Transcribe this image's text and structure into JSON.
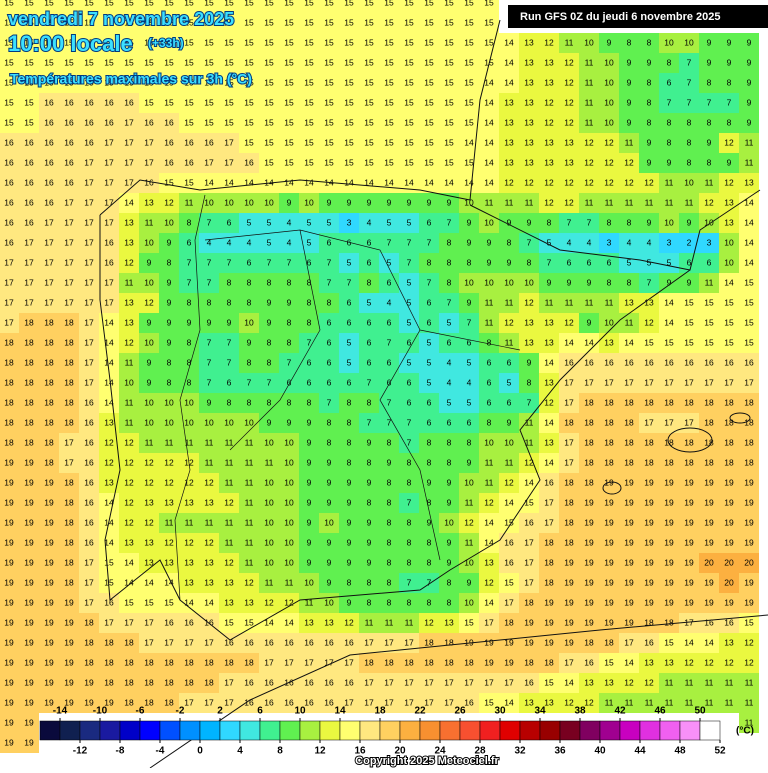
{
  "header": {
    "date": "vendredi 7 novembre 2025",
    "time": "10:00 locale",
    "lead": "(+33h)",
    "subtitle": "Températures maximales sur 3h (°C)",
    "run": "Run GFS 0Z du jeudi 6 novembre 2025"
  },
  "footer": {
    "copyright": "Copyright 2025 Meteociel.fr"
  },
  "grid": {
    "rows": [
      [
        15,
        15,
        15,
        15,
        15,
        15,
        15,
        15,
        15,
        15,
        15,
        15,
        15,
        15,
        15,
        15,
        15,
        15,
        15,
        15,
        15,
        15,
        15,
        15,
        15,
        null,
        null,
        null,
        null,
        null,
        null,
        null,
        null,
        null,
        null,
        null,
        null,
        null
      ],
      [
        15,
        15,
        15,
        15,
        15,
        15,
        15,
        15,
        15,
        15,
        15,
        15,
        15,
        15,
        15,
        15,
        15,
        15,
        15,
        15,
        15,
        15,
        15,
        15,
        15,
        null,
        null,
        null,
        null,
        null,
        null,
        null,
        null,
        null,
        null,
        null,
        null,
        null
      ],
      [
        15,
        15,
        15,
        15,
        15,
        15,
        15,
        15,
        15,
        15,
        15,
        15,
        15,
        15,
        15,
        15,
        15,
        15,
        15,
        15,
        15,
        15,
        15,
        15,
        15,
        14,
        13,
        12,
        11,
        10,
        9,
        8,
        8,
        10,
        10,
        9,
        9,
        9
      ],
      [
        15,
        15,
        15,
        15,
        15,
        15,
        15,
        15,
        15,
        15,
        15,
        15,
        15,
        15,
        15,
        15,
        15,
        15,
        15,
        15,
        15,
        15,
        15,
        15,
        15,
        14,
        13,
        13,
        12,
        11,
        10,
        9,
        9,
        8,
        7,
        9,
        9,
        9
      ],
      [
        15,
        15,
        15,
        15,
        15,
        15,
        15,
        15,
        15,
        15,
        15,
        15,
        15,
        15,
        15,
        15,
        15,
        15,
        15,
        15,
        15,
        15,
        15,
        15,
        14,
        14,
        13,
        13,
        12,
        11,
        10,
        9,
        8,
        6,
        7,
        8,
        8,
        9
      ],
      [
        15,
        15,
        16,
        16,
        16,
        16,
        16,
        15,
        15,
        15,
        15,
        15,
        15,
        15,
        15,
        15,
        15,
        15,
        15,
        15,
        15,
        15,
        15,
        15,
        14,
        13,
        13,
        12,
        12,
        11,
        10,
        9,
        8,
        7,
        7,
        7,
        7,
        9
      ],
      [
        15,
        15,
        16,
        16,
        16,
        16,
        17,
        16,
        16,
        15,
        15,
        15,
        15,
        15,
        15,
        15,
        15,
        15,
        15,
        15,
        15,
        15,
        15,
        15,
        14,
        13,
        13,
        12,
        12,
        11,
        10,
        9,
        8,
        8,
        8,
        8,
        8,
        9
      ],
      [
        16,
        16,
        16,
        16,
        16,
        17,
        17,
        17,
        16,
        16,
        16,
        17,
        15,
        15,
        15,
        15,
        15,
        15,
        15,
        15,
        15,
        15,
        15,
        14,
        14,
        13,
        13,
        13,
        13,
        12,
        12,
        11,
        9,
        8,
        8,
        9,
        12,
        11
      ],
      [
        16,
        16,
        16,
        16,
        17,
        17,
        17,
        17,
        16,
        16,
        17,
        17,
        16,
        15,
        15,
        15,
        15,
        15,
        15,
        15,
        15,
        15,
        15,
        15,
        14,
        13,
        13,
        13,
        13,
        12,
        12,
        12,
        9,
        9,
        8,
        8,
        9,
        11
      ],
      [
        16,
        16,
        16,
        16,
        17,
        17,
        17,
        16,
        15,
        15,
        14,
        14,
        14,
        14,
        14,
        14,
        14,
        14,
        14,
        14,
        14,
        14,
        14,
        14,
        14,
        12,
        12,
        12,
        12,
        12,
        12,
        12,
        12,
        11,
        10,
        11,
        12,
        13
      ],
      [
        16,
        16,
        16,
        17,
        17,
        17,
        14,
        13,
        12,
        11,
        10,
        10,
        10,
        10,
        9,
        10,
        9,
        9,
        9,
        9,
        9,
        9,
        9,
        10,
        11,
        11,
        11,
        12,
        12,
        11,
        11,
        11,
        11,
        11,
        11,
        12,
        13,
        14
      ],
      [
        16,
        16,
        17,
        17,
        17,
        17,
        13,
        11,
        10,
        8,
        7,
        6,
        5,
        5,
        4,
        5,
        5,
        3,
        4,
        5,
        5,
        6,
        7,
        9,
        10,
        9,
        9,
        8,
        7,
        7,
        8,
        8,
        9,
        10,
        9,
        10,
        13,
        14
      ],
      [
        16,
        17,
        17,
        17,
        17,
        16,
        13,
        10,
        9,
        6,
        4,
        4,
        4,
        5,
        4,
        5,
        6,
        6,
        6,
        7,
        7,
        7,
        8,
        9,
        9,
        8,
        7,
        5,
        4,
        4,
        3,
        4,
        4,
        3,
        2,
        3,
        10,
        14
      ],
      [
        17,
        17,
        17,
        17,
        17,
        16,
        12,
        9,
        8,
        7,
        7,
        7,
        6,
        7,
        7,
        6,
        7,
        5,
        6,
        5,
        7,
        8,
        8,
        8,
        9,
        9,
        8,
        7,
        6,
        6,
        6,
        5,
        5,
        5,
        6,
        6,
        10,
        14
      ],
      [
        17,
        17,
        17,
        17,
        17,
        17,
        11,
        10,
        9,
        7,
        7,
        8,
        8,
        8,
        8,
        8,
        7,
        7,
        8,
        6,
        5,
        7,
        8,
        10,
        10,
        10,
        10,
        9,
        9,
        9,
        8,
        8,
        7,
        9,
        9,
        11,
        14,
        15
      ],
      [
        17,
        17,
        17,
        17,
        17,
        17,
        13,
        12,
        9,
        8,
        8,
        8,
        8,
        9,
        9,
        8,
        8,
        6,
        5,
        4,
        5,
        6,
        7,
        9,
        11,
        11,
        12,
        11,
        11,
        11,
        11,
        13,
        13,
        14,
        15,
        15,
        15,
        15
      ],
      [
        17,
        18,
        18,
        18,
        17,
        14,
        13,
        9,
        9,
        9,
        9,
        9,
        10,
        9,
        8,
        8,
        6,
        6,
        6,
        6,
        5,
        6,
        5,
        7,
        11,
        12,
        13,
        13,
        12,
        9,
        10,
        11,
        12,
        14,
        15,
        15,
        15,
        15
      ],
      [
        18,
        18,
        18,
        18,
        17,
        14,
        12,
        10,
        9,
        8,
        7,
        7,
        9,
        8,
        8,
        7,
        6,
        5,
        6,
        7,
        6,
        5,
        6,
        6,
        8,
        11,
        13,
        13,
        14,
        14,
        13,
        14,
        15,
        15,
        15,
        15,
        15,
        15
      ],
      [
        18,
        18,
        18,
        18,
        17,
        14,
        11,
        9,
        8,
        8,
        7,
        7,
        8,
        8,
        7,
        6,
        6,
        5,
        6,
        6,
        5,
        5,
        4,
        5,
        6,
        6,
        9,
        14,
        16,
        16,
        16,
        16,
        16,
        16,
        16,
        16,
        16,
        16
      ],
      [
        18,
        18,
        18,
        18,
        17,
        14,
        10,
        9,
        8,
        8,
        7,
        6,
        7,
        7,
        6,
        6,
        6,
        6,
        7,
        6,
        6,
        5,
        4,
        4,
        6,
        5,
        8,
        13,
        17,
        17,
        17,
        17,
        17,
        17,
        17,
        17,
        17,
        17
      ],
      [
        18,
        18,
        18,
        18,
        16,
        14,
        11,
        10,
        10,
        10,
        9,
        8,
        8,
        8,
        8,
        8,
        7,
        8,
        8,
        7,
        6,
        6,
        5,
        5,
        6,
        6,
        7,
        12,
        17,
        18,
        18,
        18,
        18,
        18,
        18,
        18,
        18,
        18
      ],
      [
        18,
        18,
        18,
        18,
        16,
        13,
        11,
        10,
        10,
        10,
        10,
        10,
        10,
        9,
        9,
        9,
        8,
        8,
        7,
        7,
        7,
        6,
        6,
        6,
        8,
        9,
        11,
        14,
        18,
        18,
        18,
        18,
        17,
        17,
        17,
        18,
        18,
        18
      ],
      [
        18,
        18,
        18,
        17,
        16,
        12,
        12,
        11,
        11,
        11,
        11,
        11,
        11,
        10,
        10,
        9,
        8,
        8,
        9,
        8,
        7,
        8,
        8,
        8,
        10,
        10,
        11,
        13,
        17,
        18,
        18,
        18,
        18,
        18,
        18,
        18,
        18,
        18
      ],
      [
        19,
        19,
        18,
        17,
        16,
        12,
        12,
        12,
        12,
        12,
        11,
        11,
        11,
        11,
        10,
        9,
        9,
        8,
        8,
        9,
        8,
        8,
        8,
        9,
        11,
        11,
        12,
        14,
        17,
        18,
        18,
        18,
        18,
        18,
        18,
        18,
        18,
        18
      ],
      [
        19,
        19,
        19,
        18,
        16,
        13,
        12,
        12,
        12,
        12,
        12,
        11,
        11,
        10,
        10,
        9,
        9,
        9,
        9,
        8,
        8,
        9,
        9,
        10,
        11,
        12,
        14,
        16,
        18,
        18,
        19,
        19,
        19,
        19,
        19,
        19,
        19,
        19
      ],
      [
        19,
        19,
        19,
        18,
        16,
        14,
        12,
        13,
        13,
        13,
        13,
        12,
        11,
        10,
        10,
        9,
        9,
        9,
        8,
        8,
        7,
        8,
        9,
        11,
        12,
        14,
        15,
        17,
        18,
        19,
        19,
        19,
        19,
        19,
        19,
        19,
        19,
        19
      ],
      [
        19,
        19,
        19,
        18,
        16,
        14,
        12,
        12,
        11,
        11,
        11,
        11,
        11,
        10,
        10,
        9,
        10,
        9,
        9,
        8,
        8,
        9,
        10,
        12,
        14,
        15,
        16,
        17,
        18,
        19,
        19,
        19,
        19,
        19,
        19,
        19,
        19,
        19
      ],
      [
        19,
        19,
        19,
        18,
        16,
        14,
        13,
        13,
        12,
        12,
        12,
        11,
        11,
        10,
        10,
        9,
        9,
        9,
        9,
        8,
        8,
        8,
        9,
        11,
        14,
        16,
        17,
        18,
        18,
        19,
        19,
        19,
        19,
        19,
        19,
        19,
        19,
        19
      ],
      [
        19,
        19,
        19,
        18,
        17,
        15,
        14,
        13,
        13,
        13,
        13,
        12,
        11,
        10,
        10,
        9,
        9,
        9,
        9,
        8,
        8,
        8,
        9,
        10,
        13,
        16,
        17,
        18,
        19,
        19,
        19,
        19,
        19,
        19,
        19,
        20,
        20,
        20
      ],
      [
        19,
        19,
        19,
        18,
        17,
        15,
        14,
        14,
        14,
        13,
        13,
        13,
        12,
        11,
        11,
        10,
        9,
        8,
        8,
        8,
        7,
        7,
        8,
        9,
        12,
        15,
        17,
        18,
        19,
        19,
        19,
        19,
        19,
        19,
        19,
        19,
        20,
        19
      ],
      [
        19,
        19,
        19,
        19,
        17,
        16,
        15,
        15,
        15,
        14,
        14,
        13,
        13,
        12,
        12,
        11,
        10,
        9,
        8,
        8,
        8,
        8,
        8,
        10,
        14,
        17,
        18,
        19,
        19,
        19,
        19,
        19,
        19,
        19,
        19,
        19,
        19,
        19
      ],
      [
        19,
        19,
        19,
        19,
        18,
        17,
        17,
        17,
        16,
        16,
        16,
        15,
        15,
        14,
        14,
        13,
        13,
        12,
        11,
        11,
        11,
        12,
        13,
        15,
        17,
        18,
        19,
        19,
        19,
        19,
        19,
        19,
        18,
        18,
        17,
        16,
        16,
        15
      ],
      [
        19,
        19,
        19,
        19,
        18,
        18,
        18,
        17,
        17,
        17,
        17,
        16,
        16,
        16,
        16,
        16,
        16,
        16,
        17,
        17,
        17,
        18,
        18,
        19,
        19,
        19,
        19,
        19,
        19,
        18,
        18,
        17,
        16,
        15,
        14,
        14,
        13,
        12
      ],
      [
        19,
        19,
        19,
        19,
        18,
        18,
        18,
        18,
        18,
        18,
        18,
        18,
        18,
        17,
        17,
        17,
        17,
        17,
        18,
        18,
        18,
        18,
        18,
        18,
        19,
        19,
        18,
        18,
        17,
        16,
        15,
        14,
        13,
        13,
        12,
        12,
        12,
        12
      ],
      [
        19,
        19,
        19,
        19,
        19,
        18,
        18,
        18,
        18,
        18,
        18,
        17,
        16,
        16,
        16,
        16,
        16,
        16,
        17,
        17,
        17,
        17,
        17,
        17,
        17,
        17,
        16,
        15,
        14,
        13,
        13,
        12,
        12,
        11,
        11,
        11,
        11,
        11
      ],
      [
        19,
        19,
        19,
        19,
        19,
        19,
        18,
        18,
        18,
        17,
        17,
        17,
        16,
        16,
        16,
        16,
        16,
        17,
        17,
        17,
        17,
        17,
        17,
        16,
        15,
        14,
        13,
        13,
        12,
        12,
        11,
        11,
        11,
        11,
        11,
        11,
        11,
        11
      ],
      [
        19,
        19,
        null,
        null,
        null,
        null,
        null,
        null,
        null,
        null,
        null,
        null,
        null,
        null,
        null,
        null,
        null,
        null,
        null,
        null,
        null,
        null,
        null,
        null,
        null,
        null,
        null,
        null,
        null,
        null,
        null,
        null,
        null,
        null,
        null,
        null,
        null,
        11
      ],
      [
        19,
        19,
        null,
        null,
        null,
        null,
        null,
        null,
        null,
        null,
        null,
        null,
        null,
        null,
        null,
        null,
        null,
        null,
        null,
        null,
        null,
        null,
        null,
        null,
        null,
        null,
        null,
        null,
        null,
        null,
        null,
        null,
        null,
        null,
        null,
        null,
        null,
        null
      ]
    ]
  },
  "legend": {
    "clim": [
      -16,
      52
    ],
    "colors": [
      "#0a0a3c",
      "#102050",
      "#1a2a80",
      "#1a1aa0",
      "#0000c8",
      "#0000ff",
      "#0050ff",
      "#0090ff",
      "#00b4ff",
      "#30d8ff",
      "#40e8e0",
      "#40f090",
      "#60f050",
      "#a8f040",
      "#eaf840",
      "#ffff70",
      "#ffe880",
      "#ffd060",
      "#fcb040",
      "#f89030",
      "#f87030",
      "#f85030",
      "#f02020",
      "#e00000",
      "#b80000",
      "#980000",
      "#780020",
      "#800060",
      "#a00090",
      "#c800c0",
      "#e030e0",
      "#f060f0",
      "#f890f8",
      "#ffffff"
    ],
    "ticks_top": [
      -14,
      -10,
      -6,
      -2,
      2,
      6,
      10,
      14,
      18,
      22,
      26,
      30,
      34,
      38,
      42,
      46,
      50
    ],
    "ticks_bottom": [
      -12,
      -8,
      -4,
      0,
      4,
      8,
      12,
      16,
      20,
      24,
      28,
      32,
      36,
      40,
      44,
      48,
      52
    ],
    "unit": "(°C)"
  }
}
